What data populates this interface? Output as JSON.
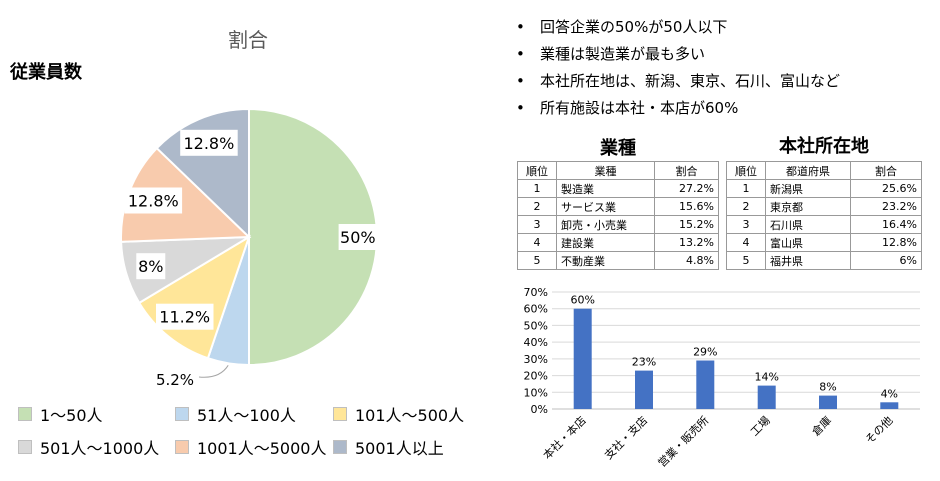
{
  "pie": {
    "title": "割合",
    "side_label": "従業員数"
  },
  "bullets": [
    "回答企業の50%が50人以下",
    "業種は製造業が最も多い",
    "本社所在地は、新潟、東京、石川、富山など",
    "所有施設は本社・本店が60%"
  ],
  "bullet_symbol": "•",
  "industry_table": {
    "title": "業種",
    "headers": [
      "順位",
      "業種",
      "割合"
    ],
    "rows": [
      [
        "1",
        "製造業",
        "27.2%"
      ],
      [
        "2",
        "サービス業",
        "15.6%"
      ],
      [
        "3",
        "卸売・小売業",
        "15.2%"
      ],
      [
        "4",
        "建設業",
        "13.2%"
      ],
      [
        "5",
        "不動産業",
        "4.8%"
      ]
    ]
  },
  "hq_table": {
    "title": "本社所在地",
    "headers": [
      "順位",
      "都道府県",
      "割合"
    ],
    "rows": [
      [
        "1",
        "新潟県",
        "25.6%"
      ],
      [
        "2",
        "東京都",
        "23.2%"
      ],
      [
        "3",
        "石川県",
        "16.4%"
      ],
      [
        "4",
        "富山県",
        "12.8%"
      ],
      [
        "5",
        "福井県",
        "6%"
      ]
    ]
  },
  "chart_data": [
    {
      "type": "pie",
      "title": "割合",
      "categories": [
        "1～50人",
        "51人～100人",
        "101人～500人",
        "501人～1000人",
        "1001人～5000人",
        "5001人以上"
      ],
      "values": [
        50,
        5.2,
        11.2,
        8,
        12.8,
        12.8
      ],
      "data_labels": [
        "50%",
        "5.2%",
        "11.2%",
        "8%",
        "12.8%",
        "12.8%"
      ],
      "colors": [
        "#c5e0b4",
        "#bdd7ee",
        "#ffe699",
        "#d9d9d9",
        "#f8cbad",
        "#adb9ca"
      ],
      "legend_position": "bottom"
    },
    {
      "type": "bar",
      "categories": [
        "本社・本店",
        "支社・支店",
        "営業・販売所",
        "工場",
        "倉庫",
        "その他"
      ],
      "values": [
        60,
        23,
        29,
        14,
        8,
        4
      ],
      "data_labels": [
        "60%",
        "23%",
        "29%",
        "14%",
        "8%",
        "4%"
      ],
      "ylim": [
        0,
        70
      ],
      "yticks": [
        "0%",
        "10%",
        "20%",
        "30%",
        "40%",
        "50%",
        "60%",
        "70%"
      ],
      "color": "#4472c4",
      "grid": true
    }
  ]
}
